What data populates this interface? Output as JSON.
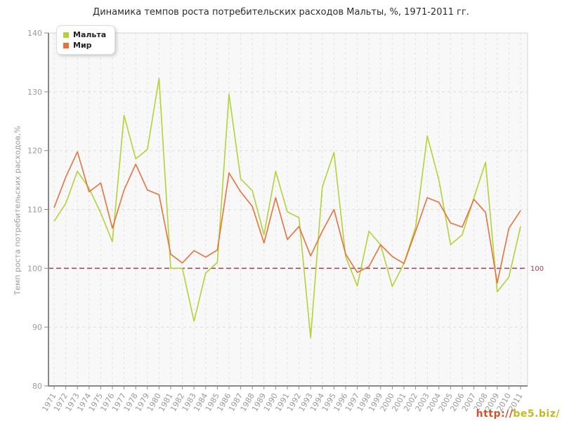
{
  "chart_data": {
    "type": "line",
    "title": "Динамика темпов роста потребительских расходов Мальты, %, 1971-2011 гг.",
    "ylabel": "Темп роста потребительских расходов,%",
    "xlabel": "",
    "x": [
      1971,
      1972,
      1973,
      1974,
      1975,
      1976,
      1977,
      1978,
      1979,
      1980,
      1981,
      1982,
      1983,
      1984,
      1985,
      1986,
      1987,
      1988,
      1989,
      1990,
      1991,
      1992,
      1993,
      1994,
      1995,
      1996,
      1997,
      1998,
      1999,
      2000,
      2001,
      2002,
      2003,
      2004,
      2005,
      2006,
      2007,
      2008,
      2009,
      2010,
      2011
    ],
    "series": [
      {
        "name": "Мальта",
        "color": "#b2d235",
        "values": [
          108.0,
          111.0,
          116.5,
          113.6,
          109.4,
          104.5,
          126.0,
          118.6,
          120.2,
          132.3,
          100.0,
          100.0,
          91.0,
          99.2,
          101.0,
          129.6,
          115.2,
          113.2,
          105.7,
          116.5,
          109.6,
          108.6,
          88.2,
          113.8,
          119.7,
          102.0,
          97.0,
          106.3,
          104.0,
          96.9,
          100.8,
          107.0,
          122.5,
          115.0,
          104.0,
          105.7,
          112.0,
          118.0,
          96.0,
          98.5,
          107.1
        ]
      },
      {
        "name": "Мир",
        "color": "#e8713c",
        "values": [
          110.3,
          115.5,
          119.8,
          113.0,
          114.5,
          106.8,
          113.3,
          117.7,
          113.3,
          112.5,
          102.4,
          100.9,
          103.0,
          101.9,
          103.1,
          116.2,
          113.0,
          110.5,
          104.3,
          112.0,
          104.9,
          107.1,
          102.1,
          106.3,
          110.0,
          102.4,
          99.3,
          100.3,
          104.0,
          102.0,
          100.8,
          106.3,
          112.0,
          111.2,
          107.7,
          107.0,
          111.7,
          109.5,
          97.5,
          106.8,
          109.8
        ]
      }
    ],
    "ylim": [
      80,
      140
    ],
    "yticks": [
      80,
      90,
      100,
      110,
      120,
      130,
      140
    ],
    "grid": true,
    "legend_position": "top-left",
    "ref_line": {
      "value": 100,
      "label": "100",
      "color": "#9c3f54"
    }
  },
  "ui": {
    "watermark": {
      "part1": "http://",
      "part2": "be5.biz/"
    }
  }
}
